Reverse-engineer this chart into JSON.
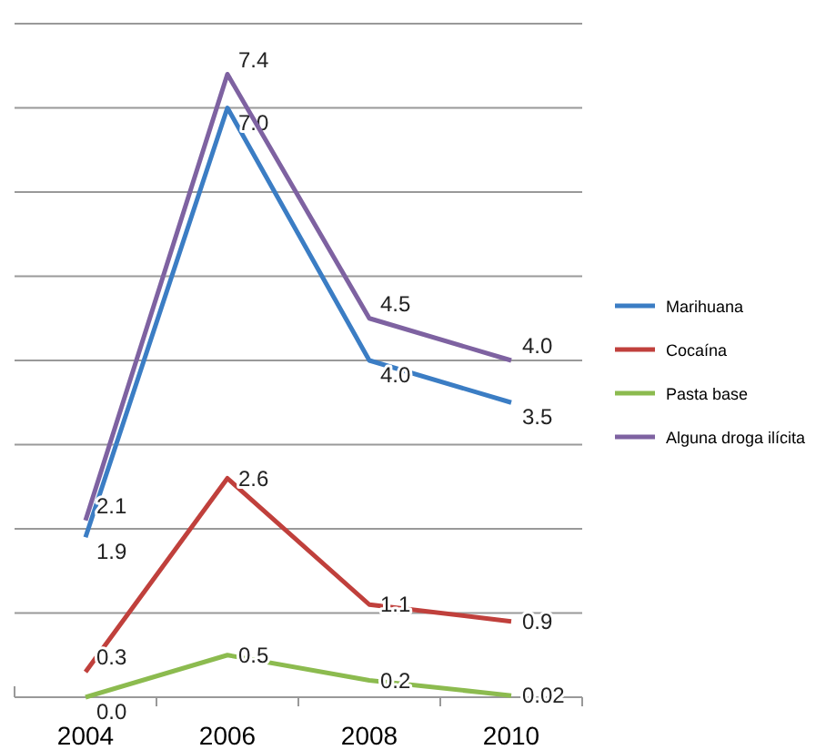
{
  "chart_data": {
    "type": "line",
    "categories": [
      "2004",
      "2006",
      "2008",
      "2010"
    ],
    "series": [
      {
        "name": "Marihuana",
        "color": "#3b7dc4",
        "values": [
          1.9,
          7.0,
          4.0,
          3.5
        ],
        "value_labels": [
          "1.9",
          "7.0",
          "4.0",
          "3.5"
        ]
      },
      {
        "name": "Cocaína",
        "color": "#c0403c",
        "values": [
          0.3,
          2.6,
          1.1,
          0.9
        ],
        "value_labels": [
          "0.3",
          "2.6",
          "1.1",
          "0.9"
        ]
      },
      {
        "name": "Pasta base",
        "color": "#8cbb4f",
        "values": [
          0.0,
          0.5,
          0.2,
          0.02
        ],
        "value_labels": [
          "0.0",
          "0.5",
          "0.2",
          "0.02"
        ]
      },
      {
        "name": "Alguna droga ilícita",
        "color": "#7e62a1",
        "values": [
          2.1,
          7.4,
          4.5,
          4.0
        ],
        "value_labels": [
          "2.1",
          "7.4",
          "4.5",
          "4.0"
        ]
      }
    ],
    "ylim": [
      0,
      8
    ],
    "yticks": [
      {
        "value": 0,
        "label": null
      },
      {
        "value": 1,
        "label": null
      },
      {
        "value": 2,
        "label": null
      },
      {
        "value": 3,
        "label": null
      },
      {
        "value": 4,
        "label": null
      },
      {
        "value": 5,
        "label": null
      },
      {
        "value": 6,
        "label": null
      },
      {
        "value": 7,
        "label": null
      },
      {
        "value": 8,
        "label": null
      }
    ],
    "grid": "y",
    "legend": "right",
    "tick_labels": "x",
    "marker": "none",
    "line_style": "solid"
  }
}
